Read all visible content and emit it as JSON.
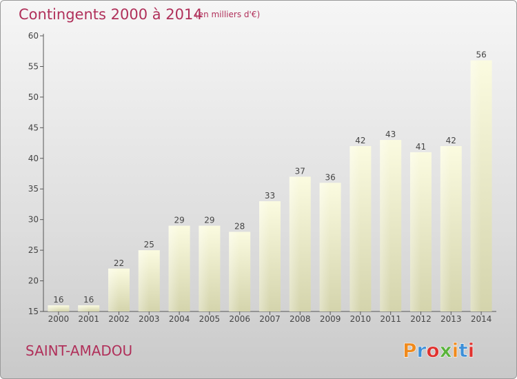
{
  "chart_data": {
    "type": "bar",
    "title": "Contingents 2000 à 2014",
    "subtitle": "(en milliers d'€)",
    "categories": [
      "2000",
      "2001",
      "2002",
      "2003",
      "2004",
      "2005",
      "2006",
      "2007",
      "2008",
      "2009",
      "2010",
      "2011",
      "2012",
      "2013",
      "2014"
    ],
    "values": [
      16,
      16,
      22,
      25,
      29,
      29,
      28,
      33,
      37,
      36,
      42,
      43,
      41,
      42,
      56
    ],
    "ylim": [
      15,
      60
    ],
    "yticks": [
      15,
      20,
      25,
      30,
      35,
      40,
      45,
      50,
      55,
      60
    ],
    "grid": false,
    "legend": "none",
    "bar_color": "#f3f3c4"
  },
  "footer": {
    "place_name": "SAINT-AMADOU",
    "logo": {
      "name": "proxiti-logo",
      "text": "Proxiti",
      "colors": [
        "#f08a1c",
        "#3c8fd8",
        "#e0322f",
        "#59b33a"
      ]
    }
  }
}
